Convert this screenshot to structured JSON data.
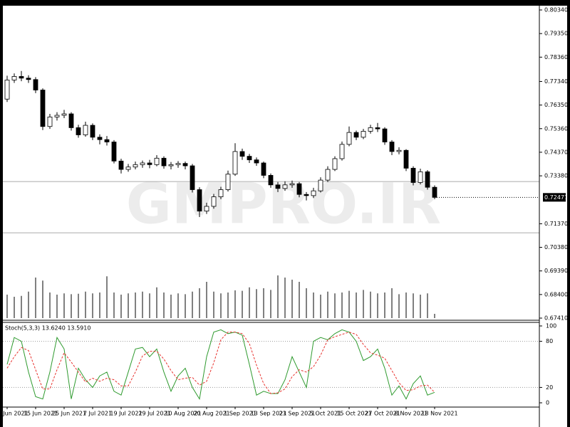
{
  "chart_data": {
    "type": "candlestick",
    "watermark": "GMPRO.IR",
    "categories": [
      "Jun 2021",
      null,
      null,
      null,
      "15 Jun 2021",
      null,
      null,
      null,
      "25 Jun 2021",
      null,
      null,
      null,
      "7 Jul 2021",
      null,
      null,
      null,
      "19 Jul 2021",
      null,
      null,
      null,
      "29 Jul 2021",
      null,
      null,
      null,
      "10 Aug 2021",
      null,
      null,
      null,
      "20 Aug 2021",
      null,
      null,
      null,
      "1 Sep 2021",
      null,
      null,
      null,
      "13 Sep 2021",
      null,
      null,
      null,
      "23 Sep 2021",
      null,
      null,
      null,
      "5 Oct 2021",
      null,
      null,
      null,
      "15 Oct 2021",
      null,
      null,
      null,
      "27 Oct 2021",
      null,
      null,
      null,
      "8 Nov 2021",
      null,
      null,
      null,
      "18 Nov 2021"
    ],
    "open": [
      0.766,
      0.774,
      0.7755,
      0.7748,
      0.7742,
      0.7698,
      0.7545,
      0.7585,
      0.7592,
      0.7598,
      0.754,
      0.751,
      0.755,
      0.75,
      0.749,
      0.748,
      0.74,
      0.7365,
      0.7375,
      0.7385,
      0.7392,
      0.7385,
      0.7412,
      0.738,
      0.7385,
      0.739,
      0.738,
      0.728,
      0.719,
      0.721,
      0.725,
      0.728,
      0.7345,
      0.744,
      0.742,
      0.7405,
      0.7392,
      0.734,
      0.73,
      0.7285,
      0.73,
      0.7305,
      0.726,
      0.7255,
      0.7275,
      0.732,
      0.7365,
      0.741,
      0.747,
      0.752,
      0.75,
      0.7525,
      0.754,
      0.7535,
      0.748,
      0.744,
      0.7445,
      0.737,
      0.731,
      0.7355,
      0.729
    ],
    "high": [
      0.7758,
      0.7768,
      0.7778,
      0.776,
      0.7752,
      0.7705,
      0.7598,
      0.7605,
      0.7615,
      0.7605,
      0.7552,
      0.7565,
      0.7558,
      0.7512,
      0.7505,
      0.7488,
      0.741,
      0.7388,
      0.7398,
      0.7402,
      0.7405,
      0.7425,
      0.742,
      0.7396,
      0.74,
      0.7398,
      0.7388,
      0.729,
      0.7225,
      0.7262,
      0.7292,
      0.736,
      0.7475,
      0.7452,
      0.743,
      0.7415,
      0.7398,
      0.7348,
      0.7312,
      0.7315,
      0.7318,
      0.7312,
      0.727,
      0.7288,
      0.7332,
      0.7378,
      0.742,
      0.7482,
      0.7545,
      0.7528,
      0.7535,
      0.7552,
      0.756,
      0.7542,
      0.7488,
      0.7458,
      0.745,
      0.7378,
      0.7368,
      0.7362,
      0.7298
    ],
    "low": [
      0.7648,
      0.7728,
      0.7735,
      0.7728,
      0.7685,
      0.753,
      0.7535,
      0.757,
      0.758,
      0.7528,
      0.7498,
      0.7502,
      0.7488,
      0.747,
      0.7465,
      0.739,
      0.7348,
      0.7355,
      0.7365,
      0.7372,
      0.737,
      0.7378,
      0.7368,
      0.7365,
      0.7372,
      0.7365,
      0.7268,
      0.7165,
      0.7178,
      0.72,
      0.724,
      0.7272,
      0.7338,
      0.7405,
      0.7392,
      0.738,
      0.7328,
      0.7288,
      0.727,
      0.7275,
      0.7288,
      0.7248,
      0.7235,
      0.7245,
      0.7268,
      0.7312,
      0.7358,
      0.7402,
      0.7462,
      0.7488,
      0.7492,
      0.7515,
      0.7522,
      0.7468,
      0.7425,
      0.7428,
      0.7358,
      0.7298,
      0.7302,
      0.728,
      0.724
    ],
    "close": [
      0.774,
      0.7755,
      0.7748,
      0.7742,
      0.7698,
      0.7545,
      0.7585,
      0.7592,
      0.7598,
      0.754,
      0.751,
      0.755,
      0.75,
      0.749,
      0.748,
      0.74,
      0.7365,
      0.7375,
      0.7385,
      0.7392,
      0.7385,
      0.7412,
      0.738,
      0.7385,
      0.739,
      0.738,
      0.728,
      0.719,
      0.721,
      0.725,
      0.728,
      0.7345,
      0.744,
      0.742,
      0.7405,
      0.7392,
      0.734,
      0.73,
      0.7285,
      0.73,
      0.7305,
      0.726,
      0.7255,
      0.7275,
      0.732,
      0.7365,
      0.741,
      0.747,
      0.752,
      0.75,
      0.7525,
      0.754,
      0.7535,
      0.748,
      0.744,
      0.7445,
      0.737,
      0.731,
      0.7355,
      0.729,
      0.72477
    ],
    "volume": [
      55,
      50,
      52,
      62,
      95,
      88,
      60,
      55,
      58,
      56,
      57,
      62,
      58,
      60,
      98,
      60,
      55,
      58,
      60,
      62,
      58,
      72,
      60,
      55,
      58,
      56,
      62,
      70,
      85,
      62,
      58,
      60,
      65,
      64,
      72,
      68,
      70,
      66,
      100,
      95,
      90,
      85,
      70,
      60,
      55,
      62,
      58,
      60,
      64,
      60,
      66,
      62,
      58,
      60,
      70,
      56,
      60,
      58,
      55,
      58,
      10
    ],
    "bull_color": "#ffffff",
    "bear_color": "#000000",
    "ylim": [
      0.6741,
      0.8034
    ],
    "yticks": [
      {
        "value": 0.8034,
        "label": "0.80340"
      },
      {
        "value": 0.7935,
        "label": "0.79350"
      },
      {
        "value": 0.7836,
        "label": "0.78360"
      },
      {
        "value": 0.7734,
        "label": "0.77340"
      },
      {
        "value": 0.7635,
        "label": "0.76350"
      },
      {
        "value": 0.7536,
        "label": "0.75360"
      },
      {
        "value": 0.7437,
        "label": "0.74370"
      },
      {
        "value": 0.7338,
        "label": "0.73380"
      },
      {
        "value": 0.7137,
        "label": "0.71370"
      },
      {
        "value": 0.7038,
        "label": "0.70380"
      },
      {
        "value": 0.6939,
        "label": "0.69390"
      },
      {
        "value": 0.684,
        "label": "0.68400"
      },
      {
        "value": 0.6741,
        "label": "0.67410"
      }
    ],
    "hlines": [
      0.7314,
      0.7099
    ],
    "stoch": {
      "type": "line",
      "label": "Stoch(5,3,3) 13.6240 13.5910",
      "ylim": [
        0,
        100
      ],
      "yticks": [
        100,
        80,
        20,
        0
      ],
      "levels": [
        80,
        20
      ],
      "series": [
        {
          "color": "#2e9a2e",
          "values": [
            50,
            85,
            80,
            40,
            8,
            5,
            40,
            85,
            70,
            5,
            45,
            30,
            20,
            35,
            40,
            15,
            10,
            40,
            70,
            72,
            60,
            70,
            40,
            15,
            35,
            45,
            20,
            5,
            60,
            92,
            95,
            90,
            92,
            88,
            50,
            10,
            15,
            12,
            12,
            30,
            60,
            40,
            20,
            80,
            85,
            82,
            90,
            95,
            92,
            80,
            55,
            60,
            70,
            45,
            10,
            22,
            5,
            25,
            35,
            10,
            13.624
          ]
        },
        {
          "color": "#e8322e",
          "values": [
            45,
            60,
            72,
            68,
            43,
            18,
            18,
            43,
            65,
            53,
            40,
            27,
            32,
            28,
            32,
            30,
            22,
            22,
            40,
            61,
            67,
            67,
            57,
            42,
            30,
            32,
            33,
            23,
            28,
            52,
            82,
            92,
            92,
            90,
            77,
            49,
            25,
            12,
            13,
            18,
            34,
            43,
            40,
            47,
            62,
            82,
            86,
            89,
            92,
            89,
            76,
            65,
            62,
            58,
            42,
            26,
            16,
            17,
            22,
            23,
            13.591
          ]
        }
      ]
    }
  }
}
